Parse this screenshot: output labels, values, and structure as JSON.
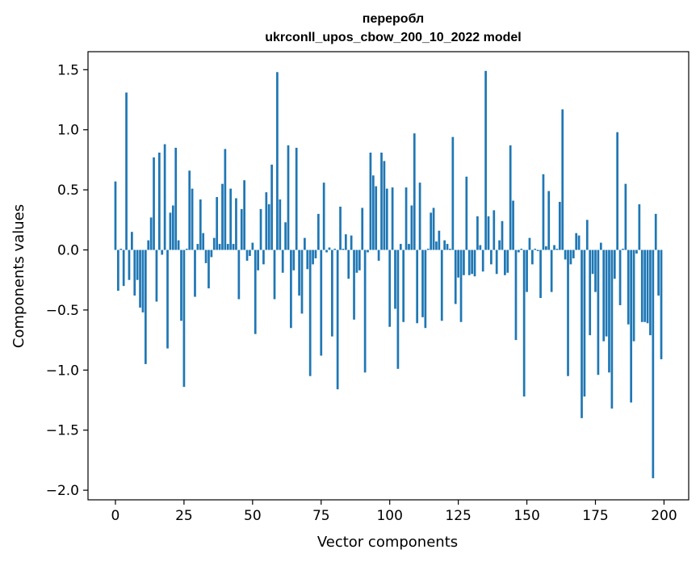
{
  "chart_data": {
    "type": "bar",
    "title_line1": "переробл",
    "title_line2": "ukrconll_upos_cbow_200_10_2022 model",
    "xlabel": "Vector components",
    "ylabel": "Components values",
    "xlim": [
      -10,
      209
    ],
    "ylim": [
      -2.08,
      1.65
    ],
    "xticks": [
      0,
      25,
      50,
      75,
      100,
      125,
      150,
      175,
      200
    ],
    "yticks": [
      -2.0,
      -1.5,
      -1.0,
      -0.5,
      0.0,
      0.5,
      1.0,
      1.5
    ],
    "xtick_labels": [
      "0",
      "25",
      "50",
      "75",
      "100",
      "125",
      "150",
      "175",
      "200"
    ],
    "ytick_labels": [
      "−2.0",
      "−1.5",
      "−1.0",
      "−0.5",
      "0.0",
      "0.5",
      "1.0",
      "1.5"
    ],
    "bar_color": "#1f77b4",
    "x": [
      0,
      1,
      2,
      3,
      4,
      5,
      6,
      7,
      8,
      9,
      10,
      11,
      12,
      13,
      14,
      15,
      16,
      17,
      18,
      19,
      20,
      21,
      22,
      23,
      24,
      25,
      26,
      27,
      28,
      29,
      30,
      31,
      32,
      33,
      34,
      35,
      36,
      37,
      38,
      39,
      40,
      41,
      42,
      43,
      44,
      45,
      46,
      47,
      48,
      49,
      50,
      51,
      52,
      53,
      54,
      55,
      56,
      57,
      58,
      59,
      60,
      61,
      62,
      63,
      64,
      65,
      66,
      67,
      68,
      69,
      70,
      71,
      72,
      73,
      74,
      75,
      76,
      77,
      78,
      79,
      80,
      81,
      82,
      83,
      84,
      85,
      86,
      87,
      88,
      89,
      90,
      91,
      92,
      93,
      94,
      95,
      96,
      97,
      98,
      99,
      100,
      101,
      102,
      103,
      104,
      105,
      106,
      107,
      108,
      109,
      110,
      111,
      112,
      113,
      114,
      115,
      116,
      117,
      118,
      119,
      120,
      121,
      122,
      123,
      124,
      125,
      126,
      127,
      128,
      129,
      130,
      131,
      132,
      133,
      134,
      135,
      136,
      137,
      138,
      139,
      140,
      141,
      142,
      143,
      144,
      145,
      146,
      147,
      148,
      149,
      150,
      151,
      152,
      153,
      154,
      155,
      156,
      157,
      158,
      159,
      160,
      161,
      162,
      163,
      164,
      165,
      166,
      167,
      168,
      169,
      170,
      171,
      172,
      173,
      174,
      175,
      176,
      177,
      178,
      179,
      180,
      181,
      182,
      183,
      184,
      185,
      186,
      187,
      188,
      189,
      190,
      191,
      192,
      193,
      194,
      195,
      196,
      197,
      198,
      199
    ],
    "values": [
      0.57,
      -0.34,
      0.01,
      -0.3,
      1.31,
      -0.25,
      0.15,
      -0.38,
      -0.25,
      -0.48,
      -0.52,
      -0.95,
      0.08,
      0.27,
      0.77,
      -0.43,
      0.81,
      -0.04,
      0.88,
      -0.82,
      0.31,
      0.37,
      0.85,
      0.08,
      -0.59,
      -1.14,
      0.01,
      0.66,
      0.51,
      -0.39,
      0.05,
      0.42,
      0.14,
      -0.11,
      -0.32,
      -0.06,
      0.1,
      0.44,
      0.05,
      0.55,
      0.84,
      0.05,
      0.51,
      0.05,
      0.43,
      -0.41,
      0.34,
      0.58,
      -0.09,
      -0.05,
      0.06,
      -0.7,
      -0.17,
      0.34,
      -0.12,
      0.48,
      0.38,
      0.71,
      -0.41,
      1.48,
      0.42,
      -0.19,
      0.23,
      0.87,
      -0.65,
      -0.17,
      0.85,
      -0.38,
      -0.53,
      0.1,
      -0.16,
      -1.05,
      -0.12,
      -0.07,
      0.3,
      -0.88,
      0.56,
      -0.02,
      0.02,
      -0.72,
      0.01,
      -1.16,
      0.36,
      0.01,
      0.13,
      -0.24,
      0.12,
      -0.58,
      -0.19,
      -0.17,
      0.35,
      -1.02,
      -0.02,
      0.81,
      0.62,
      0.53,
      -0.09,
      0.81,
      0.74,
      0.51,
      -0.64,
      0.52,
      -0.49,
      -0.99,
      0.05,
      -0.6,
      0.52,
      0.05,
      0.37,
      0.97,
      -0.61,
      0.56,
      -0.56,
      -0.65,
      0.01,
      0.31,
      0.35,
      0.07,
      0.16,
      -0.59,
      0.08,
      0.05,
      0.01,
      0.94,
      -0.45,
      -0.23,
      -0.6,
      -0.21,
      0.61,
      -0.21,
      -0.2,
      -0.22,
      0.28,
      0.04,
      -0.18,
      1.49,
      0.28,
      -0.12,
      0.33,
      -0.2,
      0.08,
      0.24,
      -0.21,
      -0.19,
      0.87,
      0.41,
      -0.75,
      -0.02,
      0.01,
      -1.22,
      -0.35,
      0.1,
      -0.12,
      0.01,
      -0.01,
      -0.4,
      0.63,
      0.03,
      0.49,
      -0.35,
      0.04,
      0.01,
      0.4,
      1.17,
      -0.08,
      -1.05,
      -0.12,
      -0.07,
      0.14,
      0.12,
      -1.4,
      -1.22,
      0.25,
      -0.71,
      -0.2,
      -0.35,
      -1.04,
      0.06,
      -0.76,
      -0.72,
      -1.02,
      -1.32,
      -0.24,
      0.98,
      -0.46,
      0.01,
      0.55,
      -0.62,
      -1.27,
      -0.76,
      -0.03,
      0.38,
      -0.6,
      -0.6,
      -0.61,
      -0.71,
      -1.9,
      0.3,
      -0.38,
      -0.91
    ]
  }
}
